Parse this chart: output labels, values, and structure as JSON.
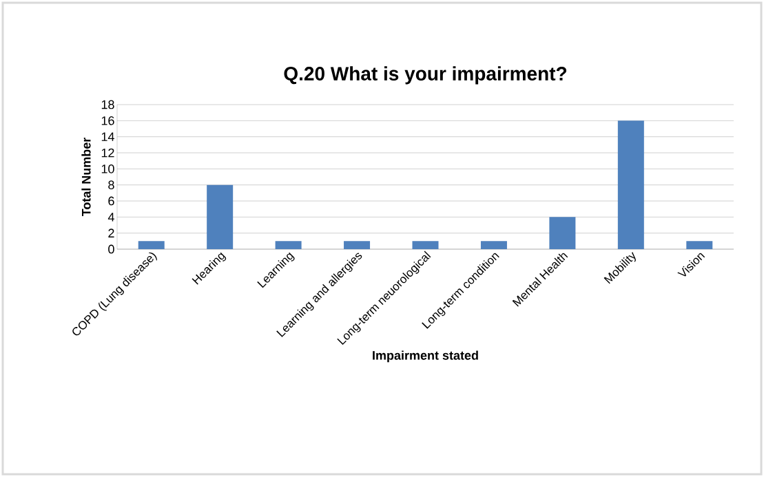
{
  "chart_data": {
    "type": "bar",
    "title": "Q.20 What is your impairment?",
    "xlabel": "Impairment stated",
    "ylabel": "Total Number",
    "categories": [
      "COPD (Lung disease)",
      "Hearing",
      "Learning",
      "Learning and allergies",
      "Long-term neuorological",
      "Long-term condition",
      "Mental Health",
      "Mobility",
      "Vision"
    ],
    "values": [
      1,
      8,
      1,
      1,
      1,
      1,
      4,
      16,
      1
    ],
    "color": "#4f81bd",
    "ylim": [
      0,
      18
    ],
    "yticks": [
      0,
      2,
      4,
      6,
      8,
      10,
      12,
      14,
      16,
      18
    ],
    "grid": "y"
  }
}
